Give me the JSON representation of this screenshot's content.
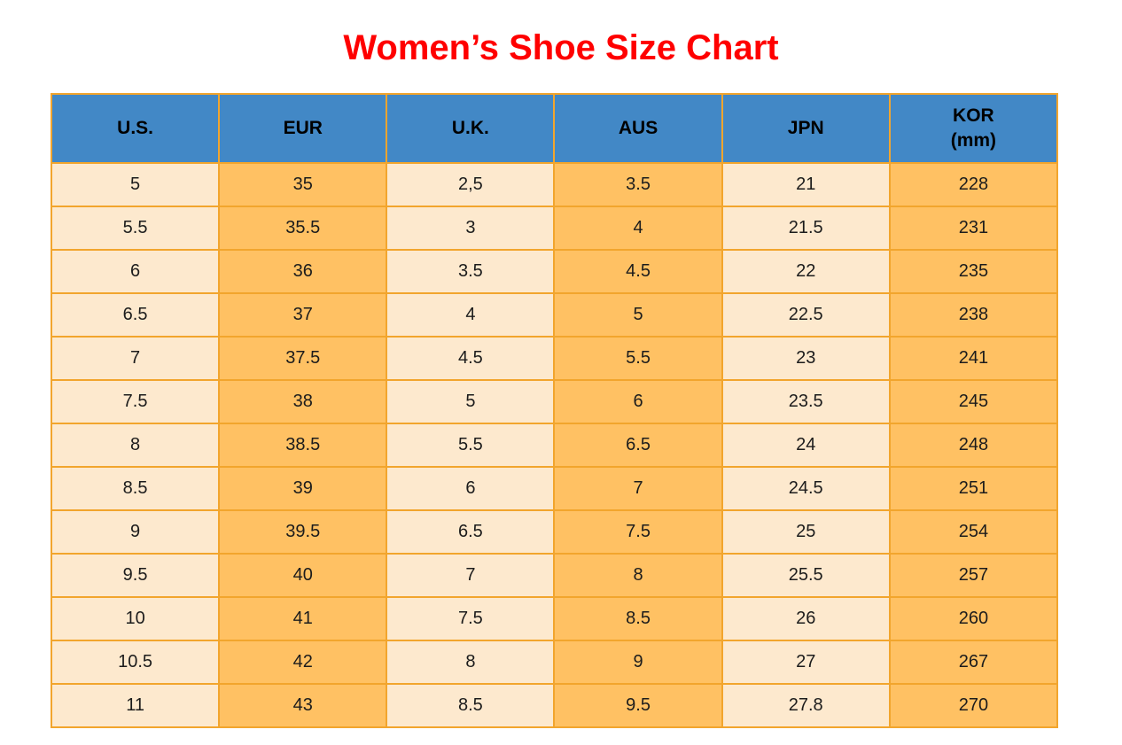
{
  "title": "Women’s Shoe Size Chart",
  "colors": {
    "title_red": "#FF0000",
    "header_blue": "#4288C6",
    "column_cream": "#FDE9CE",
    "column_orange": "#FFC163",
    "border_orange": "#F2A52D",
    "text_dark": "#1C1C1C"
  },
  "chart_data": {
    "type": "table",
    "title": "Women’s Shoe Size Chart",
    "columns": [
      "U.S.",
      "EUR",
      "U.K.",
      "AUS",
      "JPN",
      "KOR (mm)"
    ],
    "header_display": [
      "U.S.",
      "EUR",
      "U.K.",
      "AUS",
      "JPN",
      "KOR\n(mm)"
    ],
    "rows": [
      [
        "5",
        "35",
        "2,5",
        "3.5",
        "21",
        "228"
      ],
      [
        "5.5",
        "35.5",
        "3",
        "4",
        "21.5",
        "231"
      ],
      [
        "6",
        "36",
        "3.5",
        "4.5",
        "22",
        "235"
      ],
      [
        "6.5",
        "37",
        "4",
        "5",
        "22.5",
        "238"
      ],
      [
        "7",
        "37.5",
        "4.5",
        "5.5",
        "23",
        "241"
      ],
      [
        "7.5",
        "38",
        "5",
        "6",
        "23.5",
        "245"
      ],
      [
        "8",
        "38.5",
        "5.5",
        "6.5",
        "24",
        "248"
      ],
      [
        "8.5",
        "39",
        "6",
        "7",
        "24.5",
        "251"
      ],
      [
        "9",
        "39.5",
        "6.5",
        "7.5",
        "25",
        "254"
      ],
      [
        "9.5",
        "40",
        "7",
        "8",
        "25.5",
        "257"
      ],
      [
        "10",
        "41",
        "7.5",
        "8.5",
        "26",
        "260"
      ],
      [
        "10.5",
        "42",
        "8",
        "9",
        "27",
        "267"
      ],
      [
        "11",
        "43",
        "8.5",
        "9.5",
        "27.8",
        "270"
      ]
    ]
  }
}
